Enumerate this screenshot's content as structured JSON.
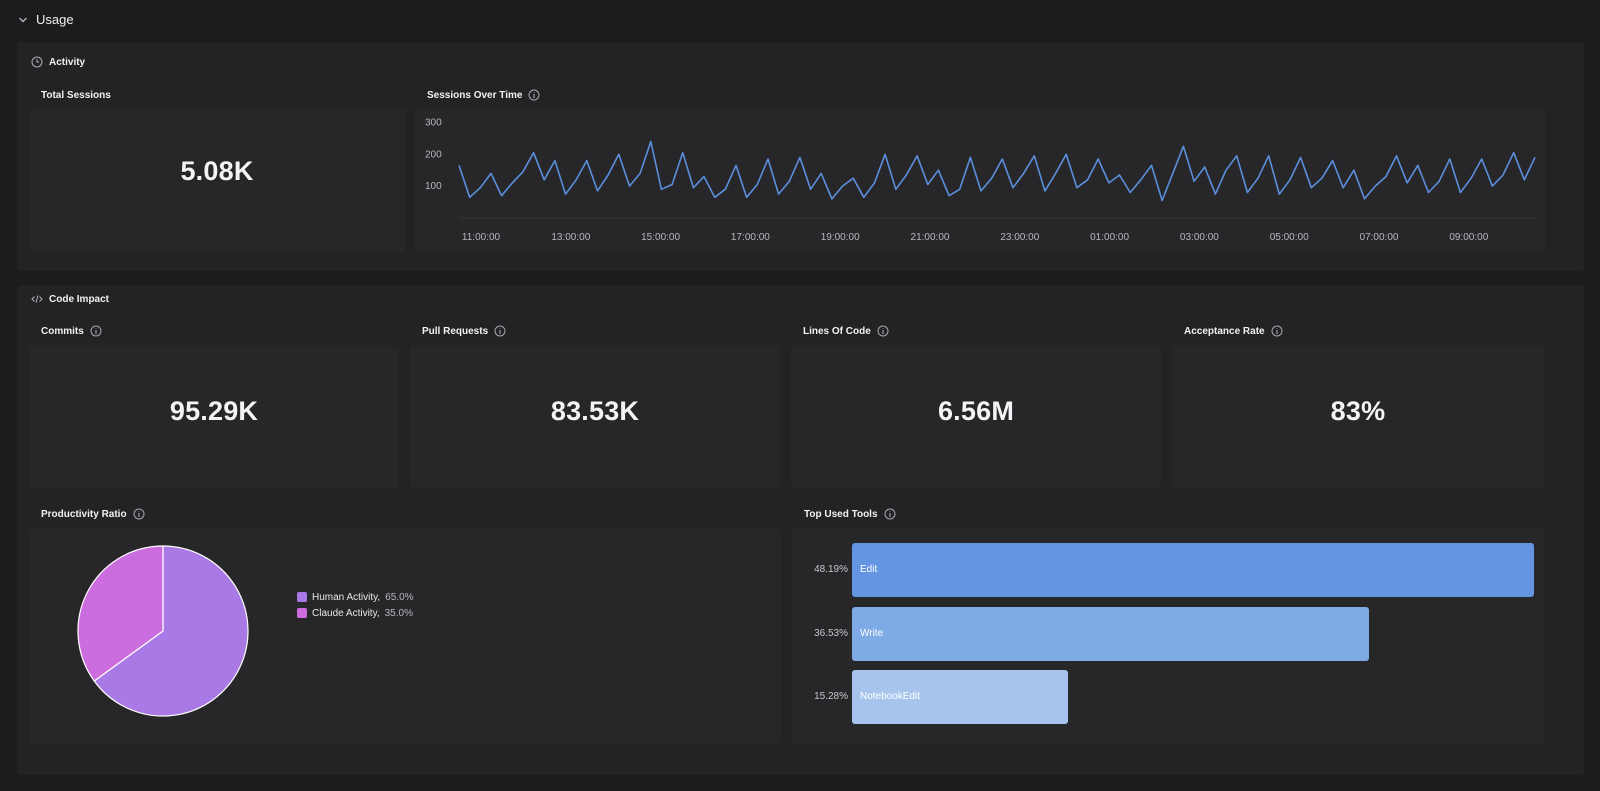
{
  "usage": {
    "label": "Usage"
  },
  "activity": {
    "title": "Activity",
    "total_sessions": {
      "title": "Total Sessions",
      "value": "5.08K"
    },
    "sessions_over_time": {
      "title": "Sessions Over Time"
    }
  },
  "code_impact": {
    "title": "Code Impact",
    "commits": {
      "title": "Commits",
      "value": "95.29K"
    },
    "pull_requests": {
      "title": "Pull Requests",
      "value": "83.53K"
    },
    "lines_of_code": {
      "title": "Lines Of Code",
      "value": "6.56M"
    },
    "acceptance_rate": {
      "title": "Acceptance Rate",
      "value": "83%"
    },
    "productivity_ratio": {
      "title": "Productivity Ratio",
      "legend": [
        {
          "label": "Human Activity,",
          "pct": "65.0%",
          "color": "#a97ae6"
        },
        {
          "label": "Claude Activity,",
          "pct": "35.0%",
          "color": "#cc6ddf"
        }
      ]
    },
    "top_used_tools": {
      "title": "Top Used Tools",
      "bars": [
        {
          "label": "Edit",
          "pct": "48.19%",
          "value": 48.19,
          "color": "#6395e3"
        },
        {
          "label": "Write",
          "pct": "36.53%",
          "value": 36.53,
          "color": "#7eaae6"
        },
        {
          "label": "NotebookEdit",
          "pct": "15.28%",
          "value": 15.28,
          "color": "#a7c5ec"
        }
      ]
    }
  },
  "chart_data": [
    {
      "type": "line",
      "title": "Sessions Over Time",
      "xlabel": "",
      "ylabel": "",
      "y_ticks": [
        100,
        200,
        300
      ],
      "x_ticks": [
        "11:00:00",
        "13:00:00",
        "15:00:00",
        "17:00:00",
        "19:00:00",
        "21:00:00",
        "23:00:00",
        "01:00:00",
        "03:00:00",
        "05:00:00",
        "07:00:00",
        "09:00:00"
      ],
      "ylim": [
        0,
        320
      ],
      "grid": false,
      "color": "#5b8fdc",
      "series": [
        {
          "values": [
            165,
            65,
            95,
            140,
            70,
            110,
            145,
            205,
            120,
            180,
            75,
            120,
            180,
            85,
            135,
            200,
            100,
            140,
            240,
            90,
            105,
            205,
            95,
            130,
            65,
            90,
            165,
            65,
            105,
            185,
            75,
            115,
            190,
            90,
            140,
            60,
            100,
            125,
            65,
            110,
            200,
            90,
            135,
            195,
            105,
            150,
            70,
            90,
            190,
            85,
            125,
            185,
            95,
            140,
            195,
            85,
            140,
            200,
            95,
            120,
            185,
            110,
            135,
            80,
            120,
            165,
            55,
            140,
            225,
            115,
            160,
            75,
            150,
            195,
            80,
            125,
            195,
            75,
            120,
            190,
            95,
            125,
            180,
            95,
            150,
            60,
            100,
            130,
            195,
            110,
            165,
            80,
            115,
            185,
            80,
            125,
            185,
            100,
            135,
            205,
            120,
            190
          ]
        }
      ]
    },
    {
      "type": "pie",
      "title": "Productivity Ratio",
      "categories": [
        "Human Activity",
        "Claude Activity"
      ],
      "values": [
        65.0,
        35.0
      ],
      "colors": [
        "#a97ae6",
        "#cc6ddf"
      ],
      "legend": "right"
    },
    {
      "type": "bar",
      "title": "Top Used Tools",
      "orientation": "horizontal",
      "categories": [
        "Edit",
        "Write",
        "NotebookEdit"
      ],
      "values": [
        48.19,
        36.53,
        15.28
      ]
    }
  ]
}
